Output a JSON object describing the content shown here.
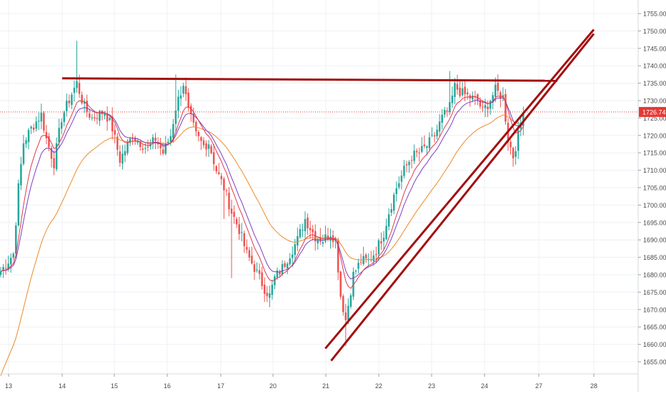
{
  "colors": {
    "background": "#ffffff",
    "grid": "#eef0f4",
    "axis_text": "#4a4a4a",
    "candle_up": "#26a69a",
    "candle_down": "#ef5350",
    "ma_fast": "#e0394a",
    "ma_mid": "#7b3fc4",
    "ma_slow": "#f08a24",
    "trendline": "#a30f0f",
    "price_label_bg": "#e53935",
    "price_label_text": "#ffffff"
  },
  "chart_data": {
    "type": "candlestick",
    "x_ticks": [
      "13",
      "14",
      "15",
      "16",
      "17",
      "20",
      "21",
      "22",
      "23",
      "24",
      "27",
      "28"
    ],
    "y_ticks": [
      "1655.00",
      "1660.00",
      "1665.00",
      "1670.00",
      "1675.00",
      "1680.00",
      "1685.00",
      "1690.00",
      "1695.00",
      "1700.00",
      "1705.00",
      "1710.00",
      "1715.00",
      "1720.00",
      "1725.00",
      "1730.00",
      "1735.00",
      "1740.00",
      "1745.00",
      "1750.00",
      "1755.00"
    ],
    "ylim": [
      1653.0,
      1757.0
    ],
    "grid": true,
    "last_price": 1726.74,
    "last_price_label": "1726.74",
    "anchors": [
      [
        0,
        1681
      ],
      [
        5,
        1686
      ],
      [
        7,
        1705
      ],
      [
        9,
        1718
      ],
      [
        12,
        1722
      ],
      [
        16,
        1726
      ],
      [
        18,
        1719
      ],
      [
        21,
        1712
      ],
      [
        24,
        1725
      ],
      [
        28,
        1732
      ],
      [
        30,
        1735
      ],
      [
        33,
        1728
      ],
      [
        36,
        1725
      ],
      [
        41,
        1727
      ],
      [
        44,
        1722
      ],
      [
        47,
        1713
      ],
      [
        52,
        1720
      ],
      [
        55,
        1718
      ],
      [
        58,
        1716
      ],
      [
        61,
        1719
      ],
      [
        64,
        1715
      ],
      [
        67,
        1720
      ],
      [
        69,
        1728
      ],
      [
        72,
        1735
      ],
      [
        74,
        1727
      ],
      [
        77,
        1720
      ],
      [
        80,
        1717
      ],
      [
        82,
        1718
      ],
      [
        85,
        1710
      ],
      [
        88,
        1705
      ],
      [
        91,
        1698
      ],
      [
        94,
        1693
      ],
      [
        97,
        1686
      ],
      [
        100,
        1682
      ],
      [
        104,
        1676
      ],
      [
        106,
        1674
      ],
      [
        108,
        1679
      ],
      [
        111,
        1682
      ],
      [
        114,
        1686
      ],
      [
        117,
        1690
      ],
      [
        120,
        1696
      ],
      [
        124,
        1691
      ],
      [
        127,
        1690
      ],
      [
        130,
        1692
      ],
      [
        132,
        1690
      ],
      [
        134,
        1674
      ],
      [
        136,
        1667
      ],
      [
        139,
        1680
      ],
      [
        142,
        1684
      ],
      [
        145,
        1684
      ],
      [
        148,
        1687
      ],
      [
        151,
        1692
      ],
      [
        153,
        1698
      ],
      [
        156,
        1705
      ],
      [
        159,
        1710
      ],
      [
        162,
        1714
      ],
      [
        165,
        1715
      ],
      [
        168,
        1717
      ],
      [
        171,
        1720
      ],
      [
        174,
        1725
      ],
      [
        177,
        1728
      ],
      [
        179,
        1734
      ],
      [
        182,
        1732
      ],
      [
        185,
        1731
      ],
      [
        188,
        1730
      ],
      [
        190,
        1727
      ],
      [
        192,
        1729
      ],
      [
        195,
        1733
      ],
      [
        198,
        1731
      ],
      [
        200,
        1719
      ],
      [
        202,
        1714
      ],
      [
        204,
        1720
      ],
      [
        206,
        1726
      ]
    ],
    "ma_periods": {
      "fast": 8,
      "mid": 12,
      "slow": 32
    },
    "horizontal_resistance": {
      "from_day": 14.0,
      "from_price": 1736.4,
      "to_day": 27.34,
      "to_price": 1735.7
    },
    "ascending_channel": [
      {
        "from_day": 20.99,
        "from_price": 1658.8,
        "to_day": 28.15,
        "to_price": 1750.4
      },
      {
        "from_day": 21.1,
        "from_price": 1655.3,
        "to_day": 28.35,
        "to_price": 1749.2
      }
    ]
  }
}
